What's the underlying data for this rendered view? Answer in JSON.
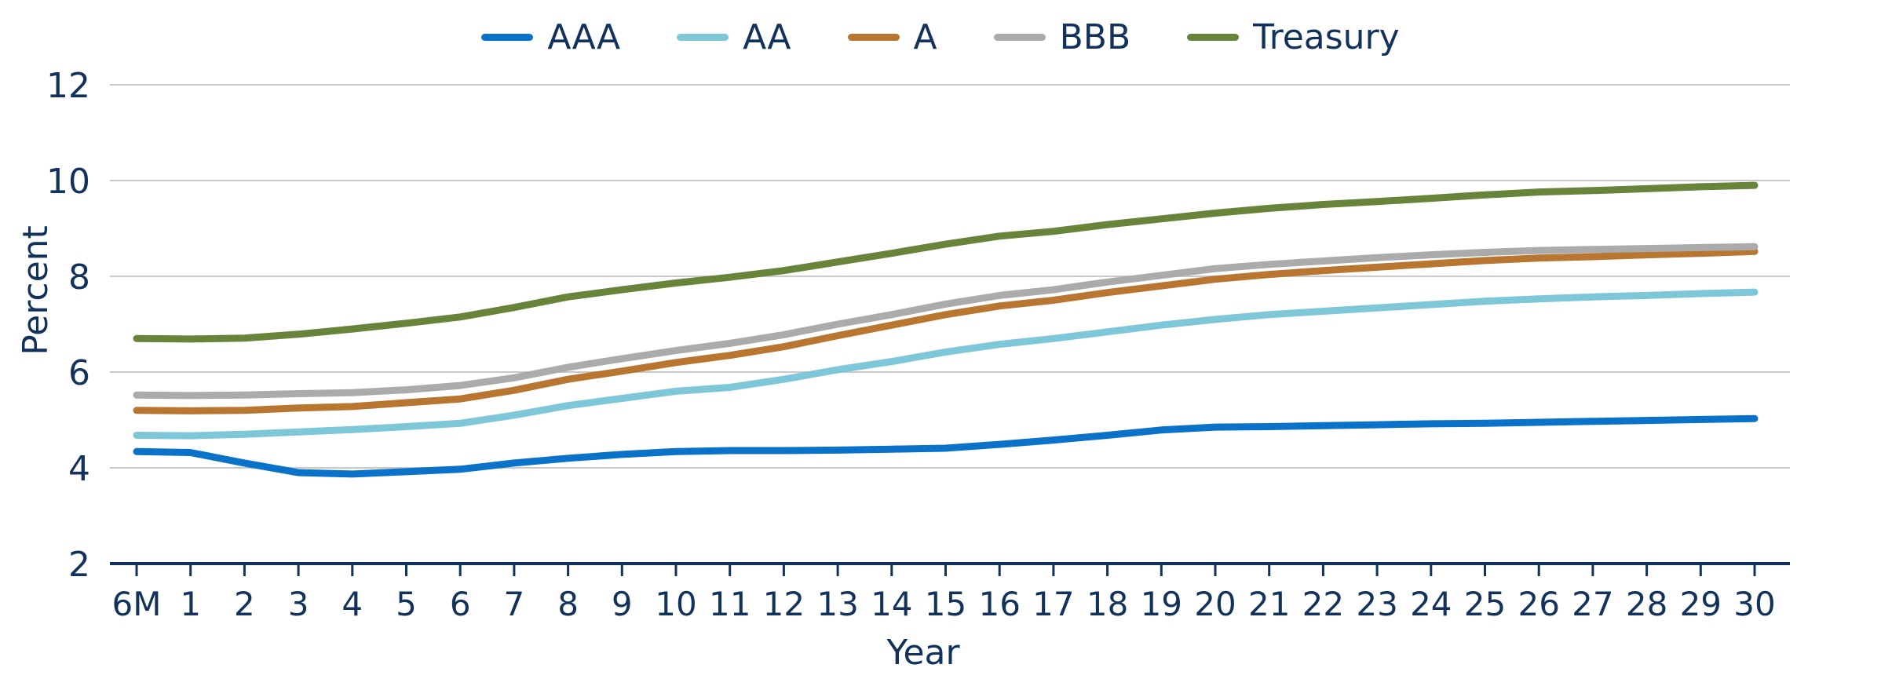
{
  "chart_data": {
    "type": "line",
    "xlabel": "Year",
    "ylabel": "Percent",
    "categories": [
      "6M",
      "1",
      "2",
      "3",
      "4",
      "5",
      "6",
      "7",
      "8",
      "9",
      "10",
      "11",
      "12",
      "13",
      "14",
      "15",
      "16",
      "17",
      "18",
      "19",
      "20",
      "21",
      "22",
      "23",
      "24",
      "25",
      "26",
      "27",
      "28",
      "29",
      "30"
    ],
    "ylim": [
      2,
      12
    ],
    "yticks": [
      2,
      4,
      6,
      8,
      10,
      12
    ],
    "grid": true,
    "legend_position": "top",
    "series": [
      {
        "name": "AAA",
        "color": "#0a72c8",
        "values": [
          4.34,
          4.32,
          4.1,
          3.9,
          3.87,
          3.92,
          3.97,
          4.1,
          4.2,
          4.28,
          4.34,
          4.36,
          4.36,
          4.37,
          4.39,
          4.41,
          4.49,
          4.58,
          4.68,
          4.79,
          4.85,
          4.86,
          4.88,
          4.9,
          4.92,
          4.93,
          4.95,
          4.97,
          4.99,
          5.01,
          5.03
        ]
      },
      {
        "name": "AA",
        "color": "#7ec7d8",
        "values": [
          4.68,
          4.67,
          4.7,
          4.75,
          4.8,
          4.86,
          4.93,
          5.1,
          5.3,
          5.45,
          5.6,
          5.68,
          5.85,
          6.05,
          6.22,
          6.42,
          6.58,
          6.7,
          6.84,
          6.98,
          7.1,
          7.2,
          7.27,
          7.34,
          7.41,
          7.48,
          7.53,
          7.57,
          7.6,
          7.64,
          7.67
        ]
      },
      {
        "name": "A",
        "color": "#b87630",
        "values": [
          5.2,
          5.19,
          5.2,
          5.25,
          5.28,
          5.36,
          5.44,
          5.62,
          5.85,
          6.02,
          6.2,
          6.35,
          6.53,
          6.76,
          6.98,
          7.2,
          7.38,
          7.5,
          7.66,
          7.8,
          7.94,
          8.04,
          8.12,
          8.19,
          8.26,
          8.33,
          8.38,
          8.41,
          8.45,
          8.48,
          8.52
        ]
      },
      {
        "name": "BBB",
        "color": "#ababab",
        "values": [
          5.52,
          5.51,
          5.52,
          5.55,
          5.57,
          5.63,
          5.72,
          5.88,
          6.1,
          6.28,
          6.45,
          6.6,
          6.78,
          7.0,
          7.2,
          7.42,
          7.6,
          7.72,
          7.88,
          8.02,
          8.16,
          8.25,
          8.32,
          8.39,
          8.45,
          8.5,
          8.54,
          8.56,
          8.58,
          8.6,
          8.62
        ]
      },
      {
        "name": "Treasury",
        "color": "#67843a",
        "values": [
          6.7,
          6.69,
          6.71,
          6.79,
          6.9,
          7.02,
          7.15,
          7.35,
          7.57,
          7.72,
          7.86,
          7.98,
          8.12,
          8.3,
          8.48,
          8.67,
          8.84,
          8.94,
          9.08,
          9.2,
          9.32,
          9.42,
          9.5,
          9.56,
          9.63,
          9.7,
          9.76,
          9.79,
          9.83,
          9.87,
          9.9
        ]
      }
    ]
  }
}
